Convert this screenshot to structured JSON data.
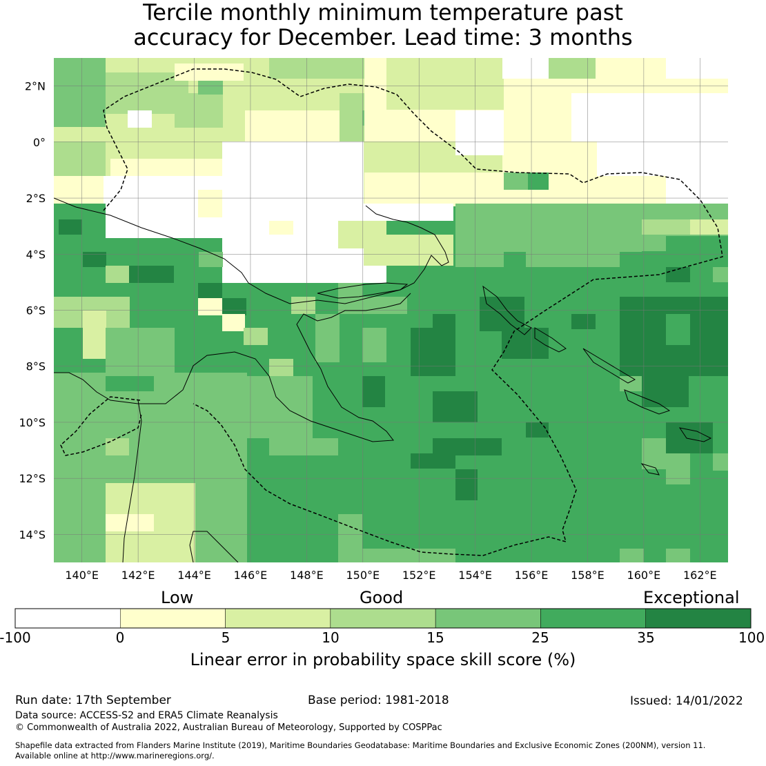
{
  "title": {
    "line1": "Tercile monthly minimum temperature past",
    "line2": "accuracy for December. Lead time: 3 months"
  },
  "map": {
    "lon_ticks": [
      "140°E",
      "142°E",
      "144°E",
      "146°E",
      "148°E",
      "150°E",
      "152°E",
      "154°E",
      "156°E",
      "158°E",
      "160°E",
      "162°E"
    ],
    "lat_ticks": [
      "2°N",
      "0°",
      "2°S",
      "4°S",
      "6°S",
      "8°S",
      "10°S",
      "12°S",
      "14°S"
    ],
    "lon_range": [
      139,
      163
    ],
    "lat_range": [
      -15,
      3
    ]
  },
  "colorbar": {
    "categories": [
      "Low",
      "Good",
      "Exceptional"
    ],
    "ticks": [
      "-100",
      "0",
      "5",
      "10",
      "15",
      "25",
      "35",
      "100"
    ],
    "colors": [
      "#ffffff",
      "#ffffcc",
      "#d9f0a3",
      "#addd8e",
      "#78c679",
      "#41ab5d",
      "#238443"
    ],
    "label": "Linear error in probability space skill score (%)"
  },
  "footer": {
    "run_date": "Run date: 17th September",
    "base_period": "Base period: 1981-2018",
    "issued": "Issued: 14/01/2022",
    "data_source": "Data source: ACCESS-S2 and ERA5 Climate Reanalysis",
    "copyright": "© Commonwealth of Australia 2022, Australian Bureau of Meteorology, Supported by COSPPac",
    "shapefile1": "Shapefile data extracted from Flanders Marine Institute (2019), Maritime Boundaries Geodatabase: Maritime Boundaries and Exclusive Economic Zones (200NM), version 11.",
    "shapefile2": "Available online at http://www.marineregions.org/."
  }
}
